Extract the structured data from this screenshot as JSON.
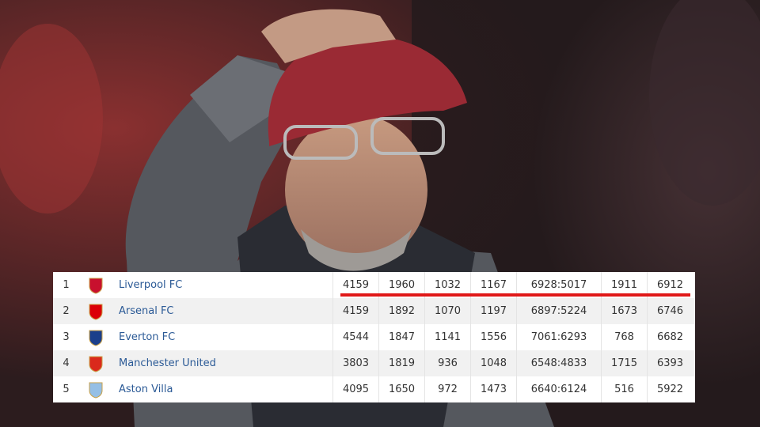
{
  "table": {
    "rows": [
      [
        1,
        "Liverpool FC",
        4159,
        1960,
        1032,
        1167,
        "6928:5017",
        1911,
        6912
      ],
      [
        2,
        "Arsenal FC",
        4159,
        1892,
        1070,
        1197,
        "6897:5224",
        1673,
        6746
      ],
      [
        3,
        "Everton FC",
        4544,
        1847,
        1141,
        1556,
        "7061:6293",
        768,
        6682
      ],
      [
        4,
        "Manchester United",
        3803,
        1819,
        936,
        1048,
        "6548:4833",
        1715,
        6393
      ],
      [
        5,
        "Aston Villa",
        4095,
        1650,
        972,
        1473,
        "6640:6124",
        516,
        5922
      ]
    ]
  }
}
